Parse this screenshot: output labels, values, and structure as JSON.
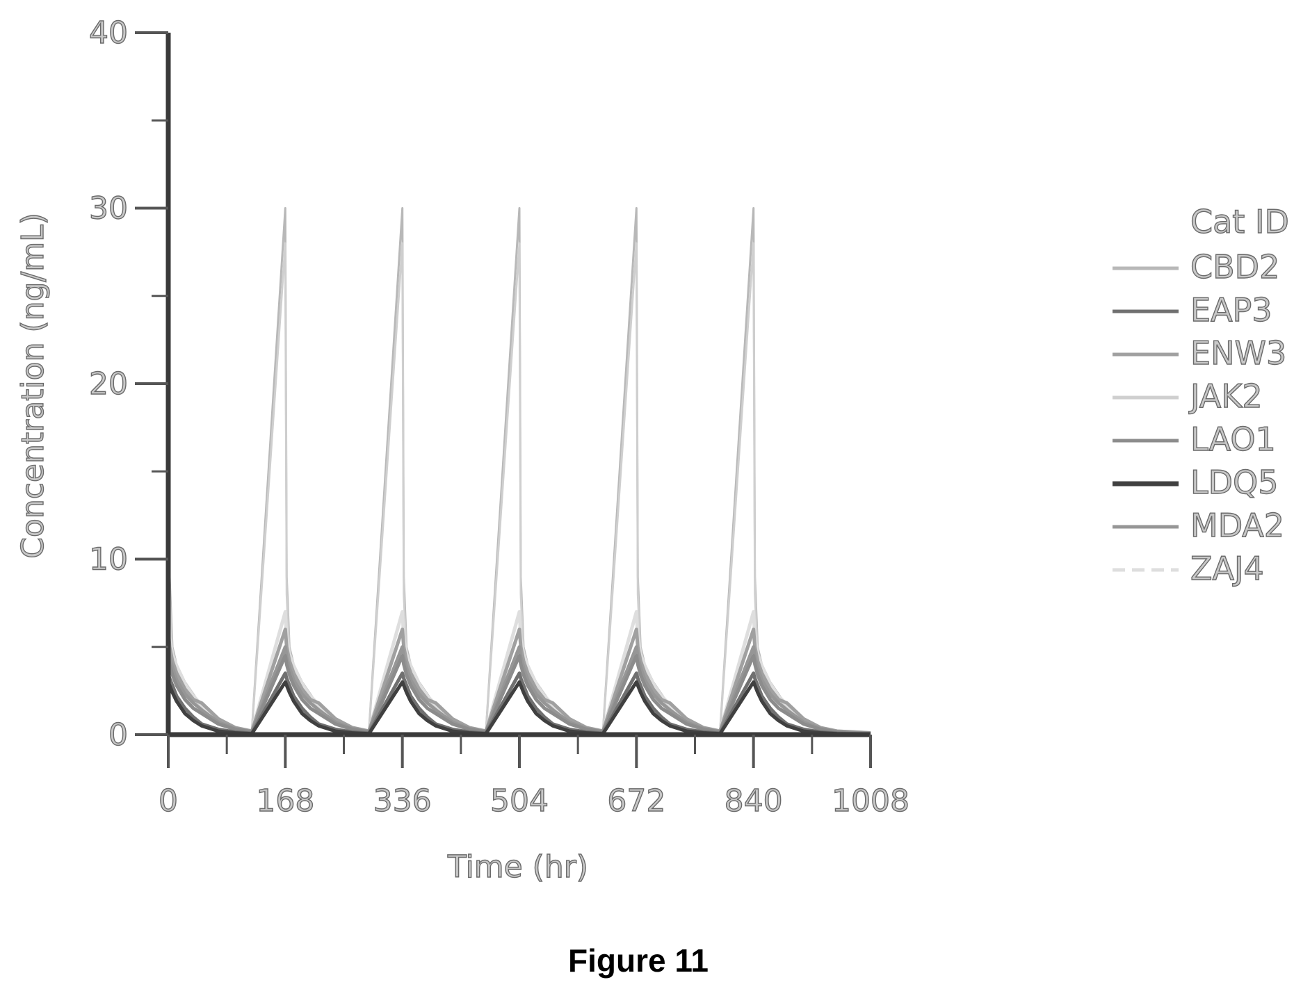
{
  "figure_caption": "Figure 11",
  "chart_data": {
    "type": "line",
    "title": "",
    "xlabel": "Time (hr)",
    "ylabel": "Concentration (ng/mL)",
    "xlim": [
      0,
      1008
    ],
    "ylim": [
      0,
      40
    ],
    "x_ticks": [
      0,
      168,
      336,
      504,
      672,
      840,
      1008
    ],
    "x_tick_labels": [
      "0",
      "168",
      "336",
      "504",
      "672",
      "840",
      "1008"
    ],
    "y_ticks": [
      0,
      10,
      20,
      30,
      40
    ],
    "y_tick_labels": [
      "0",
      "10",
      "20",
      "30",
      "40"
    ],
    "dose_interval_hr": 168,
    "dose_times_hr": [
      0,
      168,
      336,
      504,
      672,
      840
    ],
    "legend_title": "Cat ID",
    "legend_position": "right",
    "grid": false,
    "series": [
      {
        "name": "CBD2",
        "color": "#b8b8b8",
        "peak": 30.0,
        "t": [
          0,
          2,
          6,
          12,
          24,
          36,
          48,
          72,
          96,
          120,
          168
        ],
        "c": [
          30.0,
          9.0,
          5.0,
          4.0,
          3.0,
          2.3,
          1.6,
          0.8,
          0.4,
          0.2,
          0.1
        ]
      },
      {
        "name": "EAP3",
        "color": "#707070",
        "peak": 3.5,
        "t": [
          0,
          2,
          6,
          12,
          24,
          36,
          48,
          72,
          96,
          120,
          168
        ],
        "c": [
          3.5,
          3.2,
          2.8,
          2.2,
          1.5,
          1.0,
          0.6,
          0.3,
          0.15,
          0.08,
          0.03
        ]
      },
      {
        "name": "ENW3",
        "color": "#a0a0a0",
        "peak": 6.0,
        "t": [
          0,
          2,
          6,
          12,
          24,
          36,
          48,
          72,
          96,
          120,
          168
        ],
        "c": [
          6.0,
          5.0,
          4.2,
          3.5,
          2.6,
          2.0,
          1.8,
          0.9,
          0.4,
          0.2,
          0.1
        ]
      },
      {
        "name": "JAK2",
        "color": "#cfcfcf",
        "peak": 28.0,
        "t": [
          0,
          2,
          6,
          12,
          24,
          36,
          48,
          72,
          96,
          120,
          168
        ],
        "c": [
          28.0,
          8.0,
          4.5,
          3.6,
          2.8,
          2.1,
          1.5,
          0.7,
          0.35,
          0.18,
          0.08
        ]
      },
      {
        "name": "LAO1",
        "color": "#8c8c8c",
        "peak": 4.5,
        "t": [
          0,
          2,
          6,
          12,
          24,
          36,
          48,
          72,
          96,
          120,
          168
        ],
        "c": [
          4.5,
          4.0,
          3.4,
          2.8,
          2.0,
          1.5,
          1.2,
          0.6,
          0.3,
          0.15,
          0.06
        ]
      },
      {
        "name": "LDQ5",
        "color": "#404040",
        "peak": 3.0,
        "t": [
          0,
          2,
          6,
          12,
          24,
          36,
          48,
          72,
          96,
          120,
          168
        ],
        "c": [
          3.0,
          2.8,
          2.4,
          1.9,
          1.2,
          0.8,
          0.5,
          0.2,
          0.1,
          0.05,
          0.02
        ]
      },
      {
        "name": "MDA2",
        "color": "#969696",
        "peak": 5.0,
        "t": [
          0,
          2,
          6,
          12,
          24,
          36,
          48,
          72,
          96,
          120,
          168
        ],
        "c": [
          5.0,
          4.4,
          3.8,
          3.1,
          2.3,
          1.8,
          1.4,
          0.7,
          0.35,
          0.17,
          0.07
        ]
      },
      {
        "name": "ZAJ4",
        "color": "#dedede",
        "peak": 7.0,
        "t": [
          0,
          2,
          6,
          12,
          24,
          36,
          48,
          72,
          96,
          120,
          168
        ],
        "c": [
          7.0,
          5.5,
          4.6,
          3.9,
          2.9,
          2.2,
          1.7,
          0.8,
          0.4,
          0.2,
          0.1
        ]
      }
    ]
  }
}
